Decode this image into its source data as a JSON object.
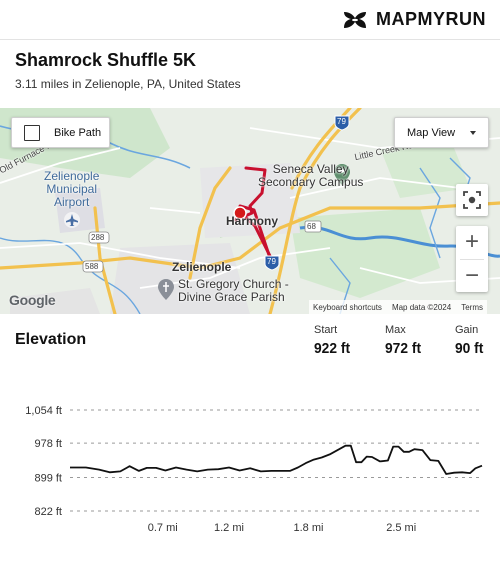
{
  "brand": {
    "name": "MAPMYRUN",
    "logo_icon": "under-armour-logo-icon"
  },
  "route": {
    "title": "Shamrock Shuffle 5K",
    "subtitle": "3.11 miles in Zelienople, PA, United States"
  },
  "map": {
    "bike_path_label": "Bike Path",
    "bike_path_checked": false,
    "map_view_label": "Map View",
    "labels": {
      "zelienople_airport": [
        "Zelienople",
        "Municipal",
        "Airport"
      ],
      "zelienople": "Zelienople",
      "harmony": "Harmony",
      "seneca_campus": [
        "Seneca Valley",
        "Secondary Campus"
      ],
      "st_gregory": [
        "St. Gregory Church -",
        "Divine Grace Parish"
      ],
      "old_furnace_rd": "Old Furnace Rd",
      "little_creek_rd": "Little Creek Rd",
      "route_79_top": "79",
      "route_79_bottom": "79",
      "route_68": "68",
      "route_288": "288",
      "route_588": "588"
    },
    "google_label": "Google",
    "attribution": [
      "Keyboard shortcuts",
      "Map data ©2024",
      "Terms"
    ],
    "zoom_in_label": "+",
    "zoom_out_label": "−",
    "colors": {
      "route": "#c8102e",
      "water": "#4a8fd4",
      "highway": "#f2c14e",
      "park": "#c9e4c5",
      "town": "#e6e6e6"
    }
  },
  "elevation": {
    "title": "Elevation",
    "stats": [
      {
        "label": "Start",
        "value": "922 ft"
      },
      {
        "label": "Max",
        "value": "972 ft"
      },
      {
        "label": "Gain",
        "value": "90 ft"
      }
    ]
  },
  "chart_data": {
    "type": "line",
    "title": "Elevation",
    "xlabel": "",
    "ylabel": "",
    "y_ticks": [
      1054,
      978,
      899,
      822
    ],
    "y_tick_labels": [
      "1,054 ft",
      "978 ft",
      "899 ft",
      "822 ft"
    ],
    "ylim": [
      822,
      1054
    ],
    "xlim": [
      0,
      3.11
    ],
    "x_ticks": [
      0.7,
      1.2,
      1.8,
      2.5
    ],
    "x_tick_labels": [
      "0.7 mi",
      "1.2 mi",
      "1.8 mi",
      "2.5 mi"
    ],
    "grid": true,
    "series": [
      {
        "x": [
          0,
          0.12,
          0.22,
          0.3,
          0.38,
          0.45,
          0.52,
          0.58,
          0.65,
          0.72,
          0.8,
          0.88,
          0.96,
          1.04,
          1.12,
          1.2,
          1.28,
          1.36,
          1.44,
          1.52,
          1.6,
          1.66,
          1.72,
          1.78,
          1.84,
          1.9,
          1.96,
          2.02,
          2.08,
          2.12,
          2.16,
          2.2,
          2.24,
          2.28,
          2.34,
          2.4,
          2.44,
          2.48,
          2.52,
          2.56,
          2.6,
          2.66,
          2.72,
          2.78,
          2.84,
          2.9,
          2.96,
          3.02,
          3.06,
          3.11
        ],
        "y": [
          922,
          922,
          917,
          911,
          913,
          925,
          914,
          921,
          921,
          915,
          922,
          917,
          913,
          917,
          918,
          922,
          915,
          920,
          913,
          914,
          914,
          914,
          922,
          932,
          940,
          945,
          952,
          962,
          972,
          972,
          934,
          934,
          947,
          946,
          936,
          938,
          970,
          970,
          958,
          958,
          964,
          962,
          939,
          937,
          907,
          910,
          911,
          909,
          920,
          926
        ]
      }
    ]
  }
}
